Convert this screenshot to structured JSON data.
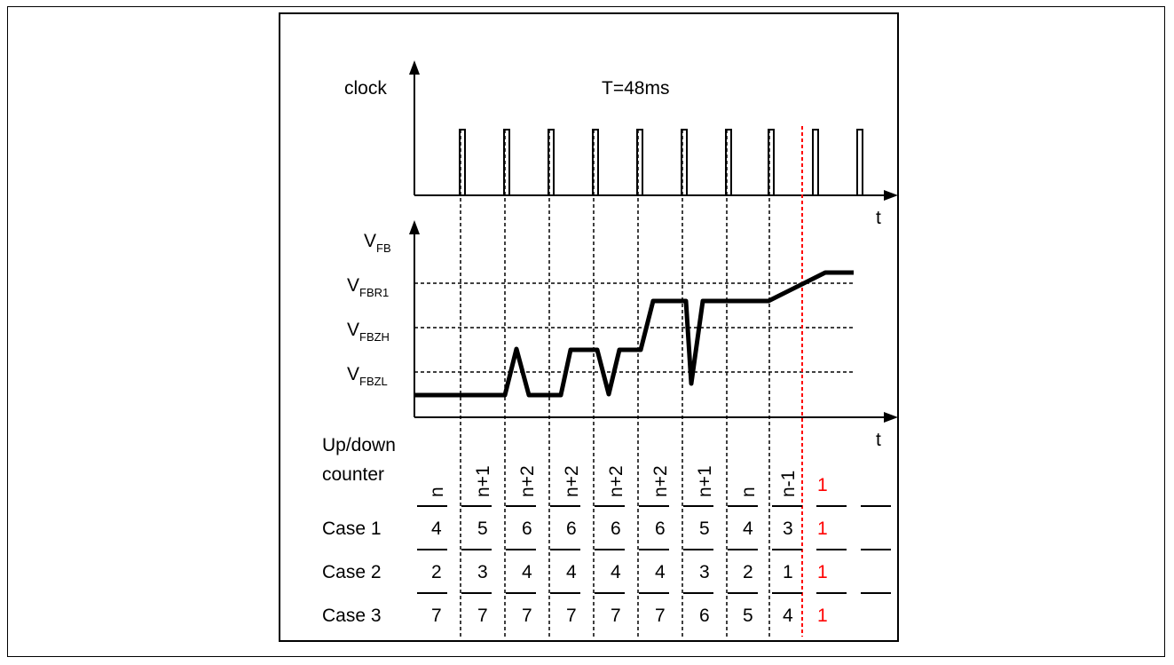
{
  "clock": {
    "label": "clock",
    "period_label": "T=48ms",
    "axis_label": "t"
  },
  "vfb": {
    "axis_label": "t",
    "y_label_main": "V",
    "y_label_sub": "FB",
    "levels": [
      {
        "main": "V",
        "sub": "FBR1"
      },
      {
        "main": "V",
        "sub": "FBZH"
      },
      {
        "main": "V",
        "sub": "FBZL"
      }
    ]
  },
  "counter": {
    "label_line1": "Up/down",
    "label_line2": "counter",
    "headers": [
      "n",
      "n+1",
      "n+2",
      "n+2",
      "n+2",
      "n+2",
      "n+1",
      "n",
      "n-1"
    ],
    "reset_value": "1",
    "cases": [
      {
        "label": "Case 1",
        "values": [
          "4",
          "5",
          "6",
          "6",
          "6",
          "6",
          "5",
          "4",
          "3"
        ],
        "reset": "1"
      },
      {
        "label": "Case 2",
        "values": [
          "2",
          "3",
          "4",
          "4",
          "4",
          "4",
          "3",
          "2",
          "1"
        ],
        "reset": "1"
      },
      {
        "label": "Case 3",
        "values": [
          "7",
          "7",
          "7",
          "7",
          "7",
          "7",
          "6",
          "5",
          "4"
        ],
        "reset": "1"
      }
    ]
  },
  "colors": {
    "line": "#000000",
    "reset_marker": "#ff0000"
  }
}
